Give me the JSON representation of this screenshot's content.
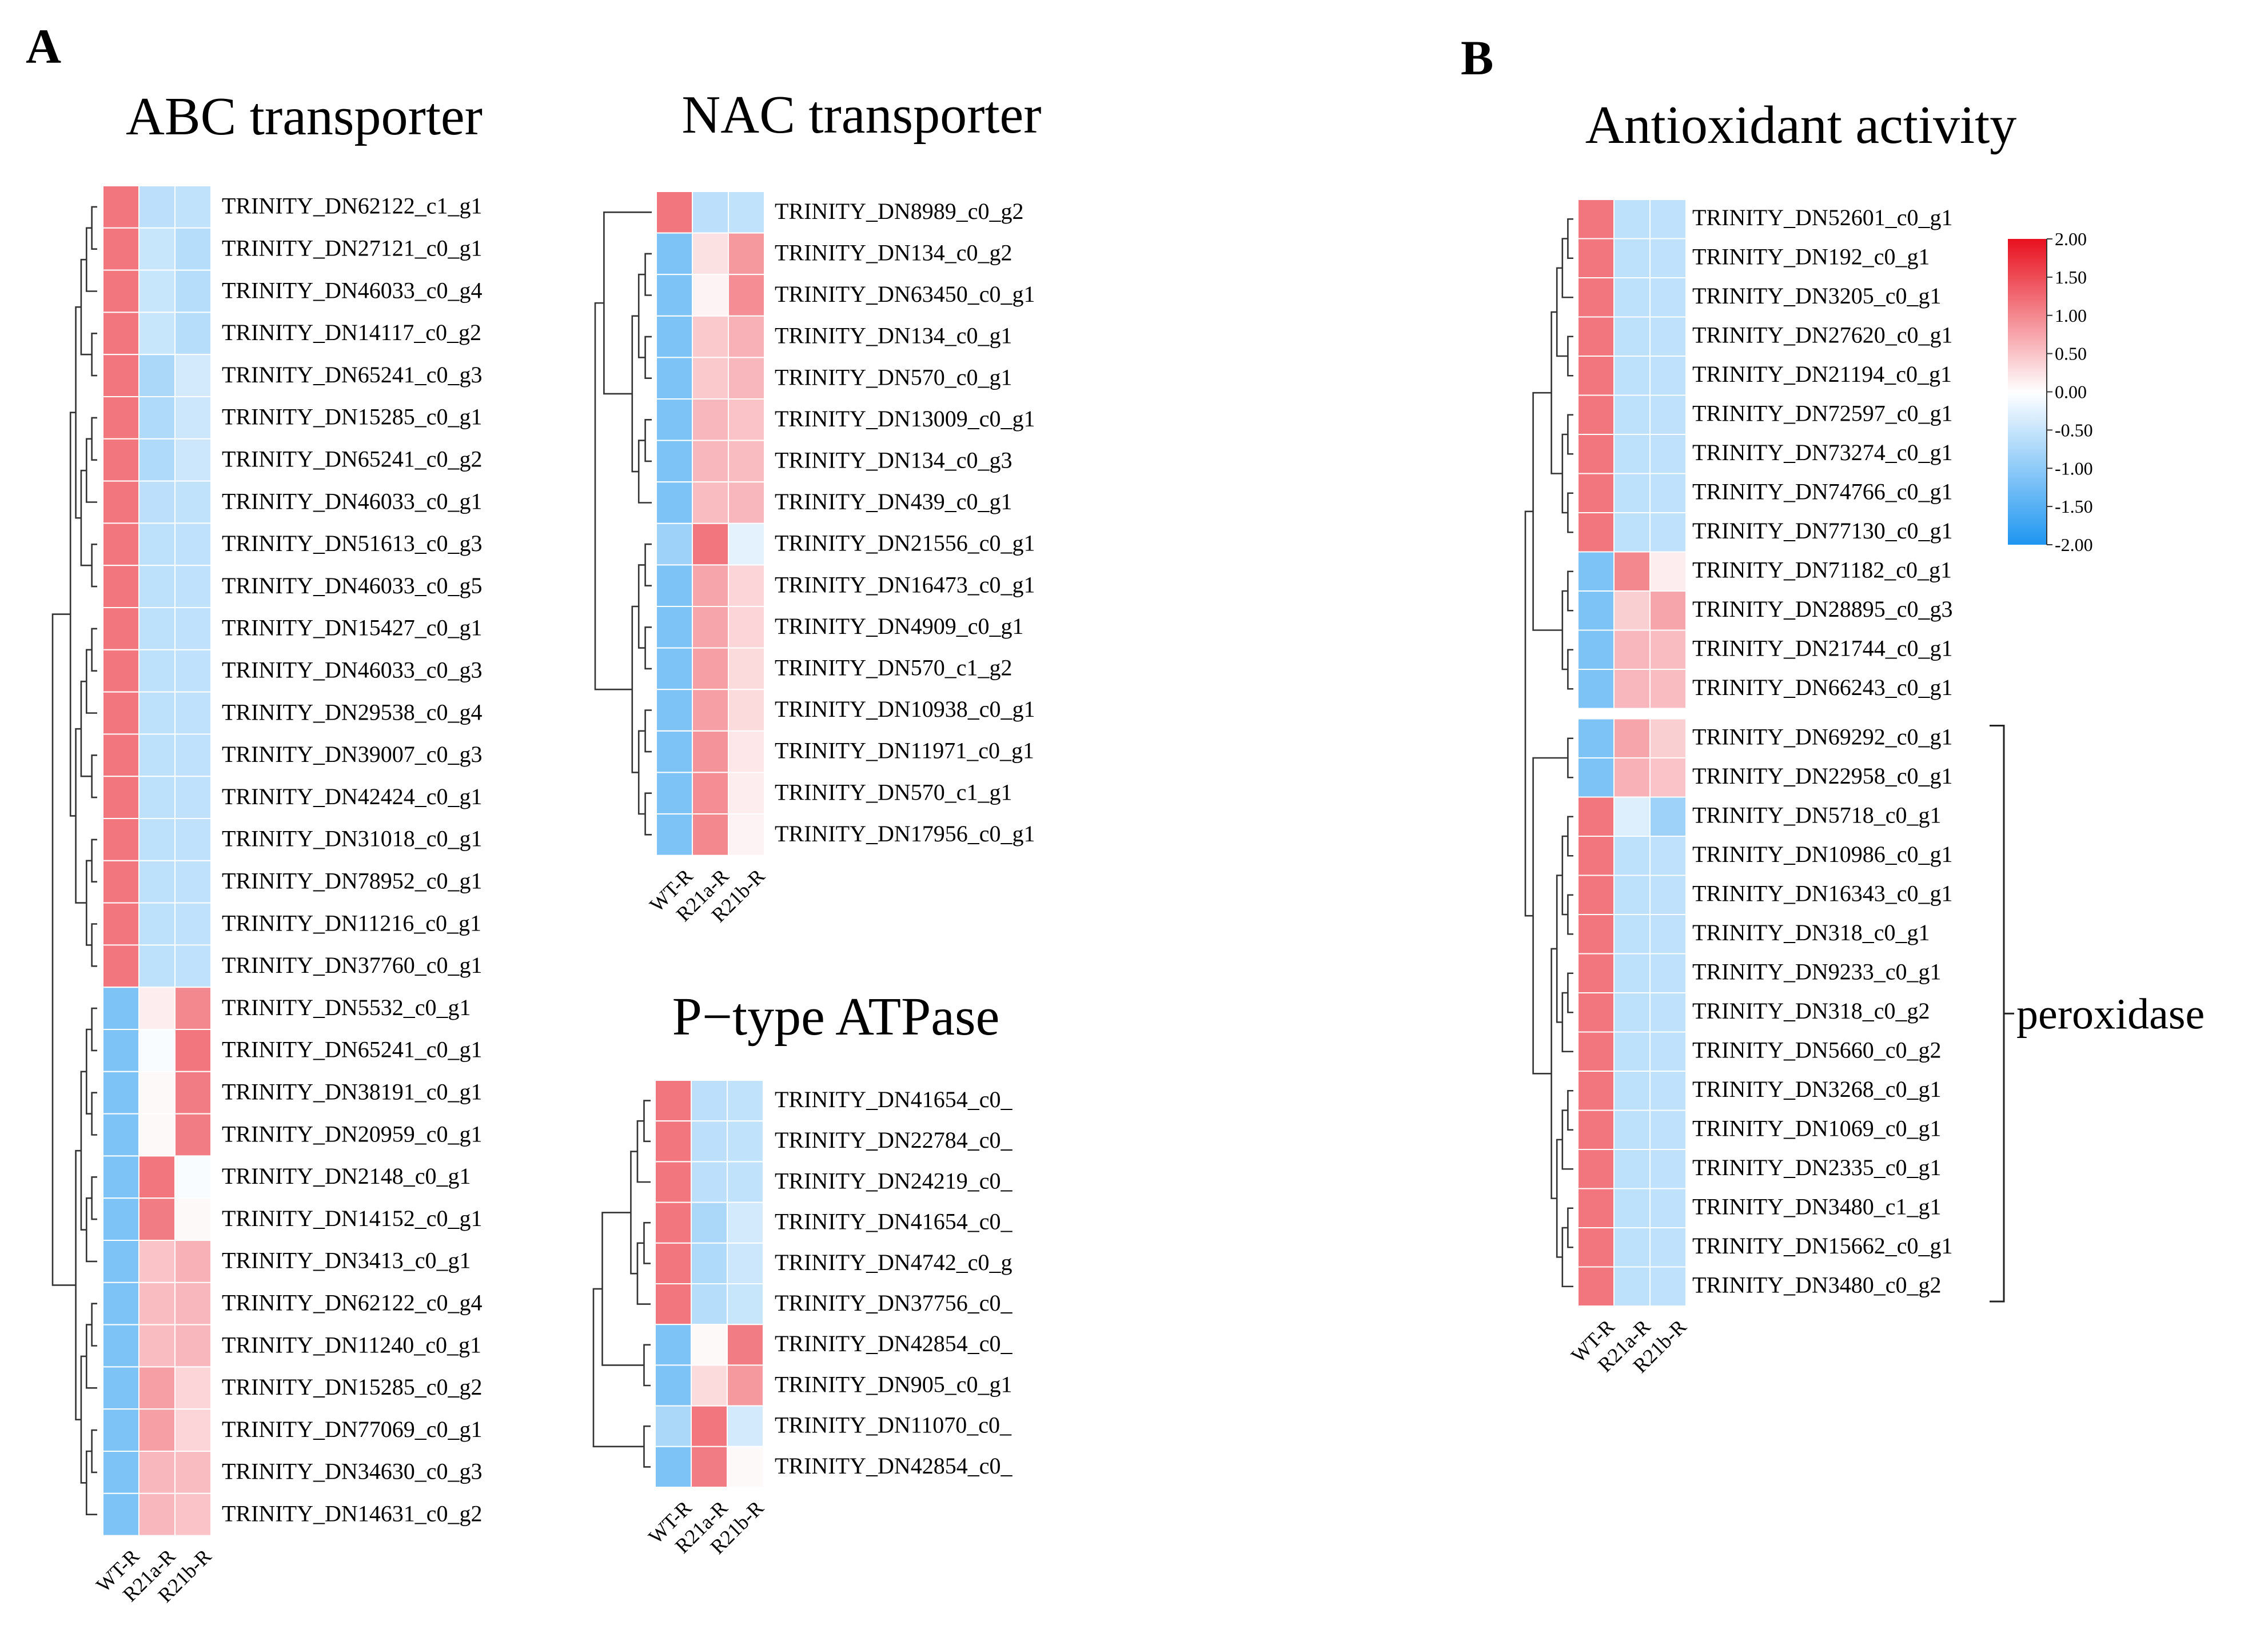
{
  "panel_labels": [
    "A",
    "B"
  ],
  "colorscale": {
    "ticks": [
      "2.00",
      "1.50",
      "1.00",
      "0.50",
      "0.00",
      "-0.50",
      "-1.00",
      "-1.50",
      "-2.00"
    ],
    "min": -2,
    "max": 2,
    "colors": {
      "low": "#1e96f0",
      "mid": "#ffffff",
      "high": "#e8101e"
    }
  },
  "chart_data": [
    {
      "type": "heatmap",
      "title": "ABC transporter",
      "columns": [
        "WT-R",
        "R21a-R",
        "R21b-R"
      ],
      "rows": [
        {
          "label": "TRINITY_DN62122_c1_g1",
          "values": [
            1.15,
            -0.6,
            -0.55
          ]
        },
        {
          "label": "TRINITY_DN27121_c0_g1",
          "values": [
            1.15,
            -0.5,
            -0.65
          ]
        },
        {
          "label": "TRINITY_DN46033_c0_g4",
          "values": [
            1.15,
            -0.5,
            -0.65
          ]
        },
        {
          "label": "TRINITY_DN14117_c0_g2",
          "values": [
            1.15,
            -0.5,
            -0.65
          ]
        },
        {
          "label": "TRINITY_DN65241_c0_g3",
          "values": [
            1.15,
            -0.75,
            -0.4
          ]
        },
        {
          "label": "TRINITY_DN15285_c0_g1",
          "values": [
            1.15,
            -0.7,
            -0.45
          ]
        },
        {
          "label": "TRINITY_DN65241_c0_g2",
          "values": [
            1.15,
            -0.7,
            -0.45
          ]
        },
        {
          "label": "TRINITY_DN46033_c0_g1",
          "values": [
            1.15,
            -0.6,
            -0.55
          ]
        },
        {
          "label": "TRINITY_DN51613_c0_g3",
          "values": [
            1.15,
            -0.58,
            -0.57
          ]
        },
        {
          "label": "TRINITY_DN46033_c0_g5",
          "values": [
            1.15,
            -0.58,
            -0.57
          ]
        },
        {
          "label": "TRINITY_DN15427_c0_g1",
          "values": [
            1.15,
            -0.58,
            -0.57
          ]
        },
        {
          "label": "TRINITY_DN46033_c0_g3",
          "values": [
            1.15,
            -0.58,
            -0.57
          ]
        },
        {
          "label": "TRINITY_DN29538_c0_g4",
          "values": [
            1.15,
            -0.58,
            -0.57
          ]
        },
        {
          "label": "TRINITY_DN39007_c0_g3",
          "values": [
            1.15,
            -0.58,
            -0.57
          ]
        },
        {
          "label": "TRINITY_DN42424_c0_g1",
          "values": [
            1.15,
            -0.58,
            -0.57
          ]
        },
        {
          "label": "TRINITY_DN31018_c0_g1",
          "values": [
            1.15,
            -0.58,
            -0.57
          ]
        },
        {
          "label": "TRINITY_DN78952_c0_g1",
          "values": [
            1.15,
            -0.58,
            -0.57
          ]
        },
        {
          "label": "TRINITY_DN11216_c0_g1",
          "values": [
            1.15,
            -0.58,
            -0.57
          ]
        },
        {
          "label": "TRINITY_DN37760_c0_g1",
          "values": [
            1.15,
            -0.58,
            -0.57
          ]
        },
        {
          "label": "TRINITY_DN5532_c0_g1",
          "values": [
            -1.15,
            0.15,
            1.0
          ]
        },
        {
          "label": "TRINITY_DN65241_c0_g1",
          "values": [
            -1.15,
            -0.05,
            1.15
          ]
        },
        {
          "label": "TRINITY_DN38191_c0_g1",
          "values": [
            -1.15,
            0.05,
            1.1
          ]
        },
        {
          "label": "TRINITY_DN20959_c0_g1",
          "values": [
            -1.15,
            0.05,
            1.1
          ]
        },
        {
          "label": "TRINITY_DN2148_c0_g1",
          "values": [
            -1.15,
            1.15,
            -0.05
          ]
        },
        {
          "label": "TRINITY_DN14152_c0_g1",
          "values": [
            -1.15,
            1.1,
            0.05
          ]
        },
        {
          "label": "TRINITY_DN3413_c0_g1",
          "values": [
            -1.15,
            0.5,
            0.65
          ]
        },
        {
          "label": "TRINITY_DN62122_c0_g4",
          "values": [
            -1.15,
            0.55,
            0.6
          ]
        },
        {
          "label": "TRINITY_DN11240_c0_g1",
          "values": [
            -1.15,
            0.55,
            0.6
          ]
        },
        {
          "label": "TRINITY_DN15285_c0_g2",
          "values": [
            -1.15,
            0.8,
            0.35
          ]
        },
        {
          "label": "TRINITY_DN77069_c0_g1",
          "values": [
            -1.15,
            0.8,
            0.35
          ]
        },
        {
          "label": "TRINITY_DN34630_c0_g3",
          "values": [
            -1.15,
            0.6,
            0.55
          ]
        },
        {
          "label": "TRINITY_DN14631_c0_g2",
          "values": [
            -1.15,
            0.6,
            0.5
          ]
        }
      ]
    },
    {
      "type": "heatmap",
      "title": "NAC transporter",
      "columns": [
        "WT-R",
        "R21a-R",
        "R21b-R"
      ],
      "rows": [
        {
          "label": "TRINITY_DN8989_c0_g2",
          "values": [
            1.15,
            -0.6,
            -0.55
          ]
        },
        {
          "label": "TRINITY_DN134_c0_g2",
          "values": [
            -1.15,
            0.25,
            0.85
          ]
        },
        {
          "label": "TRINITY_DN63450_c0_g1",
          "values": [
            -1.15,
            0.1,
            0.95
          ]
        },
        {
          "label": "TRINITY_DN134_c0_g1",
          "values": [
            -1.15,
            0.45,
            0.65
          ]
        },
        {
          "label": "TRINITY_DN570_c0_g1",
          "values": [
            -1.15,
            0.45,
            0.6
          ]
        },
        {
          "label": "TRINITY_DN13009_c0_g1",
          "values": [
            -1.15,
            0.6,
            0.5
          ]
        },
        {
          "label": "TRINITY_DN134_c0_g3",
          "values": [
            -1.15,
            0.6,
            0.55
          ]
        },
        {
          "label": "TRINITY_DN439_c0_g1",
          "values": [
            -1.15,
            0.55,
            0.6
          ]
        },
        {
          "label": "TRINITY_DN21556_c0_g1",
          "values": [
            -0.85,
            1.15,
            -0.25
          ]
        },
        {
          "label": "TRINITY_DN16473_c0_g1",
          "values": [
            -1.15,
            0.75,
            0.35
          ]
        },
        {
          "label": "TRINITY_DN4909_c0_g1",
          "values": [
            -1.15,
            0.75,
            0.35
          ]
        },
        {
          "label": "TRINITY_DN570_c1_g2",
          "values": [
            -1.15,
            0.8,
            0.3
          ]
        },
        {
          "label": "TRINITY_DN10938_c0_g1",
          "values": [
            -1.15,
            0.8,
            0.3
          ]
        },
        {
          "label": "TRINITY_DN11971_c0_g1",
          "values": [
            -1.15,
            0.9,
            0.2
          ]
        },
        {
          "label": "TRINITY_DN570_c1_g1",
          "values": [
            -1.15,
            0.95,
            0.15
          ]
        },
        {
          "label": "TRINITY_DN17956_c0_g1",
          "values": [
            -1.15,
            1.0,
            0.1
          ]
        }
      ]
    },
    {
      "type": "heatmap",
      "title": "P−type ATPase",
      "columns": [
        "WT-R",
        "R21a-R",
        "R21b-R"
      ],
      "rows": [
        {
          "label": "TRINITY_DN41654_c0_",
          "values": [
            1.15,
            -0.6,
            -0.55
          ]
        },
        {
          "label": "TRINITY_DN22784_c0_",
          "values": [
            1.15,
            -0.6,
            -0.55
          ]
        },
        {
          "label": "TRINITY_DN24219_c0_",
          "values": [
            1.15,
            -0.6,
            -0.55
          ]
        },
        {
          "label": "TRINITY_DN41654_c0_",
          "values": [
            1.15,
            -0.75,
            -0.4
          ]
        },
        {
          "label": "TRINITY_DN4742_c0_g",
          "values": [
            1.15,
            -0.7,
            -0.45
          ]
        },
        {
          "label": "TRINITY_DN37756_c0_",
          "values": [
            1.15,
            -0.65,
            -0.5
          ]
        },
        {
          "label": "TRINITY_DN42854_c0_",
          "values": [
            -1.15,
            0.05,
            1.1
          ]
        },
        {
          "label": "TRINITY_DN905_c0_g1",
          "values": [
            -1.15,
            0.3,
            0.85
          ]
        },
        {
          "label": "TRINITY_DN11070_c0_",
          "values": [
            -0.75,
            1.15,
            -0.4
          ]
        },
        {
          "label": "TRINITY_DN42854_c0_",
          "values": [
            -1.15,
            1.1,
            0.05
          ]
        }
      ]
    },
    {
      "type": "heatmap",
      "title": "Antioxidant activity",
      "columns": [
        "WT-R",
        "R21a-R",
        "R21b-R"
      ],
      "rows": [
        {
          "label": "TRINITY_DN52601_c0_g1",
          "values": [
            1.15,
            -0.58,
            -0.57
          ]
        },
        {
          "label": "TRINITY_DN192_c0_g1",
          "values": [
            1.15,
            -0.58,
            -0.57
          ]
        },
        {
          "label": "TRINITY_DN3205_c0_g1",
          "values": [
            1.15,
            -0.58,
            -0.57
          ]
        },
        {
          "label": "TRINITY_DN27620_c0_g1",
          "values": [
            1.15,
            -0.58,
            -0.57
          ]
        },
        {
          "label": "TRINITY_DN21194_c0_g1",
          "values": [
            1.15,
            -0.58,
            -0.57
          ]
        },
        {
          "label": "TRINITY_DN72597_c0_g1",
          "values": [
            1.15,
            -0.58,
            -0.57
          ]
        },
        {
          "label": "TRINITY_DN73274_c0_g1",
          "values": [
            1.15,
            -0.58,
            -0.57
          ]
        },
        {
          "label": "TRINITY_DN74766_c0_g1",
          "values": [
            1.15,
            -0.58,
            -0.57
          ]
        },
        {
          "label": "TRINITY_DN77130_c0_g1",
          "values": [
            1.15,
            -0.58,
            -0.57
          ]
        },
        {
          "label": "TRINITY_DN71182_c0_g1",
          "values": [
            -1.15,
            1.0,
            0.15
          ]
        },
        {
          "label": "TRINITY_DN28895_c0_g3",
          "values": [
            -1.15,
            0.4,
            0.75
          ]
        },
        {
          "label": "TRINITY_DN21744_c0_g1",
          "values": [
            -1.15,
            0.6,
            0.55
          ]
        },
        {
          "label": "TRINITY_DN66243_c0_g1",
          "values": [
            -1.15,
            0.6,
            0.55
          ]
        },
        {
          "label": "TRINITY_DN69292_c0_g1",
          "values": [
            -1.15,
            0.75,
            0.4
          ]
        },
        {
          "label": "TRINITY_DN22958_c0_g1",
          "values": [
            -1.15,
            0.65,
            0.5
          ]
        },
        {
          "label": "TRINITY_DN5718_c0_g1",
          "values": [
            1.15,
            -0.3,
            -0.85
          ]
        },
        {
          "label": "TRINITY_DN10986_c0_g1",
          "values": [
            1.15,
            -0.58,
            -0.57
          ]
        },
        {
          "label": "TRINITY_DN16343_c0_g1",
          "values": [
            1.15,
            -0.58,
            -0.57
          ]
        },
        {
          "label": "TRINITY_DN318_c0_g1",
          "values": [
            1.15,
            -0.58,
            -0.57
          ]
        },
        {
          "label": "TRINITY_DN9233_c0_g1",
          "values": [
            1.15,
            -0.58,
            -0.57
          ]
        },
        {
          "label": "TRINITY_DN318_c0_g2",
          "values": [
            1.15,
            -0.58,
            -0.57
          ]
        },
        {
          "label": "TRINITY_DN5660_c0_g2",
          "values": [
            1.15,
            -0.58,
            -0.57
          ]
        },
        {
          "label": "TRINITY_DN3268_c0_g1",
          "values": [
            1.15,
            -0.58,
            -0.57
          ]
        },
        {
          "label": "TRINITY_DN1069_c0_g1",
          "values": [
            1.15,
            -0.58,
            -0.57
          ]
        },
        {
          "label": "TRINITY_DN2335_c0_g1",
          "values": [
            1.15,
            -0.58,
            -0.57
          ]
        },
        {
          "label": "TRINITY_DN3480_c1_g1",
          "values": [
            1.15,
            -0.58,
            -0.57
          ]
        },
        {
          "label": "TRINITY_DN15662_c0_g1",
          "values": [
            1.15,
            -0.58,
            -0.57
          ]
        },
        {
          "label": "TRINITY_DN3480_c0_g2",
          "values": [
            1.15,
            -0.58,
            -0.57
          ]
        }
      ],
      "annotations": [
        {
          "text": "peroxidase",
          "rows": [
            "TRINITY_DN69292_c0_g1",
            "TRINITY_DN3480_c0_g2"
          ]
        }
      ]
    }
  ]
}
